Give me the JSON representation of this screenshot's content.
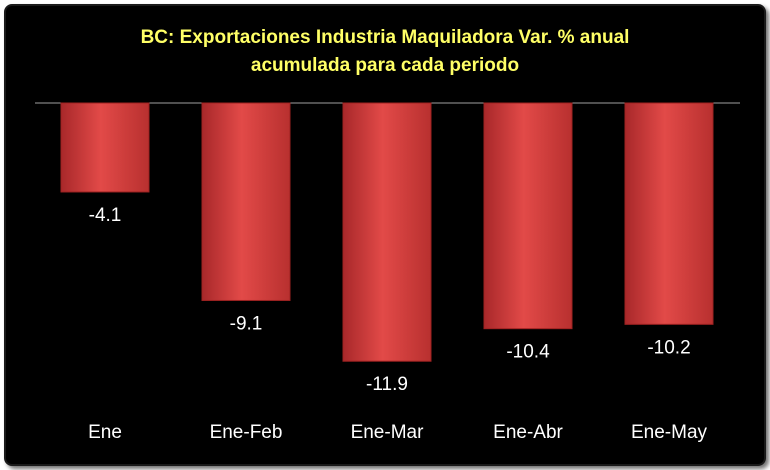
{
  "chart_data": {
    "type": "bar",
    "title": [
      "BC: Exportaciones Industria Maquiladora Var. % anual",
      "acumulada para cada periodo"
    ],
    "categories": [
      "Ene",
      "Ene-Feb",
      "Ene-Mar",
      "Ene-Abr",
      "Ene-May"
    ],
    "values": [
      -4.1,
      -9.1,
      -11.9,
      -10.4,
      -10.2
    ],
    "value_labels": [
      "-4.1",
      "-9.1",
      "-11.9",
      "-10.4",
      "-10.2"
    ],
    "xlabel": "",
    "ylabel": "",
    "ylim": [
      -12,
      0
    ],
    "grid": false,
    "legend": "none",
    "colors": {
      "bar": "#d9403f",
      "bar_dark": "#9e2221",
      "background": "#000000",
      "title": "#ffff66",
      "text": "#ffffff"
    }
  }
}
